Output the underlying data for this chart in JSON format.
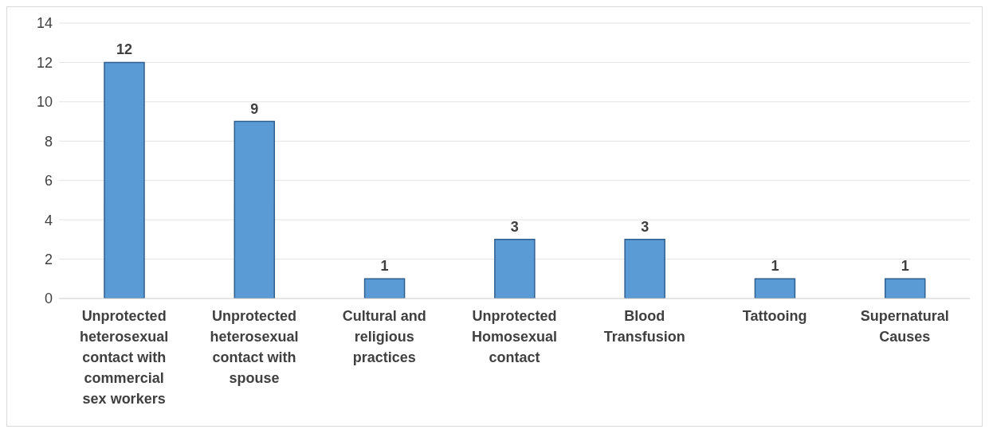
{
  "chart_data": {
    "type": "bar",
    "categories": [
      "Unprotected heterosexual contact with commercial sex workers",
      "Unprotected heterosexual contact with spouse",
      "Cultural and religious practices",
      "Unprotected Homosexual contact",
      "Blood Transfusion",
      "Tattooing",
      "Supernatural Causes"
    ],
    "values": [
      12,
      9,
      1,
      3,
      3,
      1,
      1
    ],
    "color": "#5b9bd5",
    "ylim": [
      0,
      14
    ],
    "yticks": [
      0,
      2,
      4,
      6,
      8,
      10,
      12,
      14
    ],
    "grid": "y",
    "data_labels": true
  }
}
